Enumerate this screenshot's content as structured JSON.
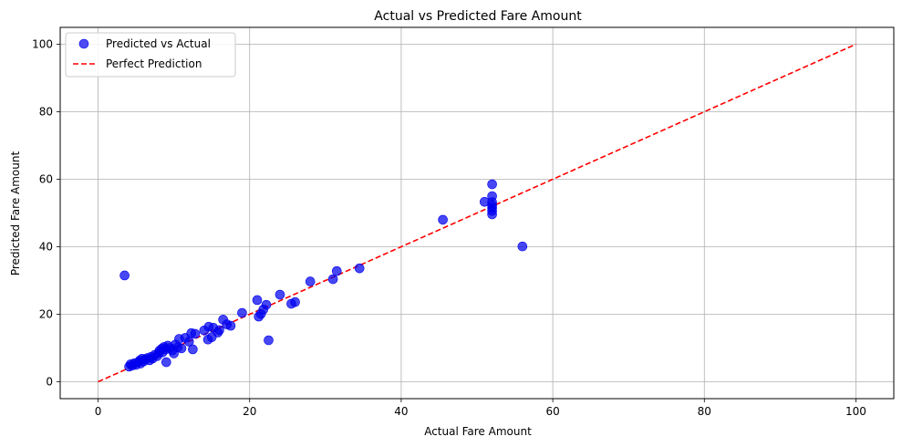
{
  "chart_data": {
    "type": "scatter",
    "title": "Actual vs Predicted Fare Amount",
    "xlabel": "Actual Fare Amount",
    "ylabel": "Predicted Fare Amount",
    "xlim": [
      -5,
      105
    ],
    "ylim": [
      -5,
      105
    ],
    "xticks": [
      0,
      20,
      40,
      60,
      80,
      100
    ],
    "yticks": [
      0,
      20,
      40,
      60,
      80,
      100
    ],
    "grid": true,
    "legend_position": "top-left",
    "series": [
      {
        "name": "Predicted vs Actual",
        "kind": "scatter",
        "color": "#0000ee",
        "points": [
          [
            3.5,
            31.5
          ],
          [
            4.1,
            4.5
          ],
          [
            4.3,
            5.2
          ],
          [
            4.5,
            4.8
          ],
          [
            4.8,
            5.5
          ],
          [
            5.0,
            5.0
          ],
          [
            5.3,
            5.8
          ],
          [
            5.5,
            6.3
          ],
          [
            5.6,
            5.4
          ],
          [
            5.8,
            6.8
          ],
          [
            6.0,
            6.0
          ],
          [
            6.2,
            6.6
          ],
          [
            6.5,
            7.0
          ],
          [
            6.8,
            6.4
          ],
          [
            7.0,
            7.4
          ],
          [
            7.2,
            6.9
          ],
          [
            7.5,
            8.0
          ],
          [
            7.8,
            7.6
          ],
          [
            8.0,
            8.5
          ],
          [
            8.1,
            9.2
          ],
          [
            8.4,
            9.8
          ],
          [
            8.5,
            8.7
          ],
          [
            8.7,
            10.3
          ],
          [
            8.9,
            9.6
          ],
          [
            9.0,
            5.8
          ],
          [
            9.2,
            10.7
          ],
          [
            9.5,
            10.0
          ],
          [
            9.8,
            9.3
          ],
          [
            10.0,
            8.4
          ],
          [
            10.2,
            11.0
          ],
          [
            10.5,
            10.2
          ],
          [
            10.7,
            12.7
          ],
          [
            11.0,
            9.9
          ],
          [
            11.5,
            13.0
          ],
          [
            12.0,
            11.9
          ],
          [
            12.3,
            14.4
          ],
          [
            12.5,
            9.6
          ],
          [
            12.8,
            14.2
          ],
          [
            14.0,
            15.2
          ],
          [
            14.5,
            12.5
          ],
          [
            14.6,
            16.3
          ],
          [
            15.0,
            13.2
          ],
          [
            15.2,
            16.0
          ],
          [
            15.8,
            14.6
          ],
          [
            16.0,
            15.3
          ],
          [
            16.5,
            18.4
          ],
          [
            17.0,
            17.0
          ],
          [
            17.5,
            16.6
          ],
          [
            19.0,
            20.4
          ],
          [
            21.0,
            24.2
          ],
          [
            21.2,
            19.3
          ],
          [
            21.5,
            20.1
          ],
          [
            21.8,
            21.4
          ],
          [
            22.2,
            22.8
          ],
          [
            22.5,
            12.3
          ],
          [
            24.0,
            25.8
          ],
          [
            25.5,
            23.1
          ],
          [
            26.0,
            23.6
          ],
          [
            28.0,
            29.7
          ],
          [
            31.0,
            30.4
          ],
          [
            31.5,
            32.8
          ],
          [
            34.5,
            33.6
          ],
          [
            45.5,
            48.0
          ],
          [
            51.0,
            53.3
          ],
          [
            52.0,
            58.5
          ],
          [
            52.0,
            55.0
          ],
          [
            52.0,
            53.2
          ],
          [
            52.0,
            52.3
          ],
          [
            52.0,
            51.5
          ],
          [
            52.0,
            50.6
          ],
          [
            52.0,
            49.6
          ],
          [
            56.0,
            40.1
          ]
        ]
      },
      {
        "name": "Perfect Prediction",
        "kind": "line",
        "style": "dashed",
        "color": "#ff0000",
        "points": [
          [
            0,
            0
          ],
          [
            100,
            100
          ]
        ]
      }
    ]
  }
}
